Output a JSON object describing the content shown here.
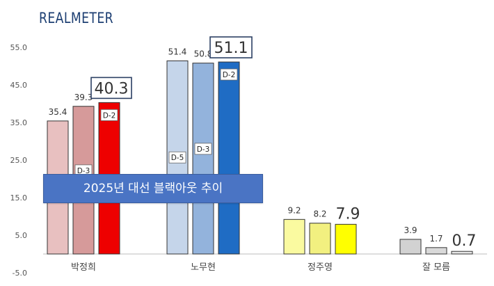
{
  "brand": "REALMETER",
  "banner": "2025년 대선 블랙아웃 추이",
  "chart_data": {
    "type": "bar",
    "categories": [
      "박정희",
      "노무현",
      "정주영",
      "잘 모름"
    ],
    "series": [
      {
        "name": "D-5",
        "values": [
          35.4,
          51.4,
          9.2,
          3.9
        ]
      },
      {
        "name": "D-3",
        "values": [
          39.3,
          50.8,
          8.2,
          1.7
        ]
      },
      {
        "name": "D-2",
        "values": [
          40.3,
          51.1,
          7.9,
          0.7
        ]
      }
    ],
    "value_labels": [
      [
        "35.4",
        "39.3",
        "40.3"
      ],
      [
        "51.4",
        "50.8",
        "51.1"
      ],
      [
        "9.2",
        "8.2",
        "7.9"
      ],
      [
        "3.9",
        "1.7",
        "0.7"
      ]
    ],
    "bar_tags": [
      [
        "D-5",
        "D-3",
        "D-2"
      ],
      [
        "D-5",
        "D-3",
        "D-2"
      ]
    ],
    "yticks": [
      "-5.0",
      "5.0",
      "15.0",
      "25.0",
      "35.0",
      "45.0",
      "55.0"
    ],
    "ylim": [
      -5,
      55
    ],
    "grid": false,
    "colors": [
      [
        "#e8c0c0",
        "#d69a9a",
        "#ee0000"
      ],
      [
        "#c5d5ea",
        "#93b3dc",
        "#1f6cc4"
      ],
      [
        "#fafaa0",
        "#f2f080",
        "#ffff00"
      ],
      [
        "#d2d2d2",
        "#d9d9d9",
        "#e6e6e6"
      ]
    ]
  }
}
